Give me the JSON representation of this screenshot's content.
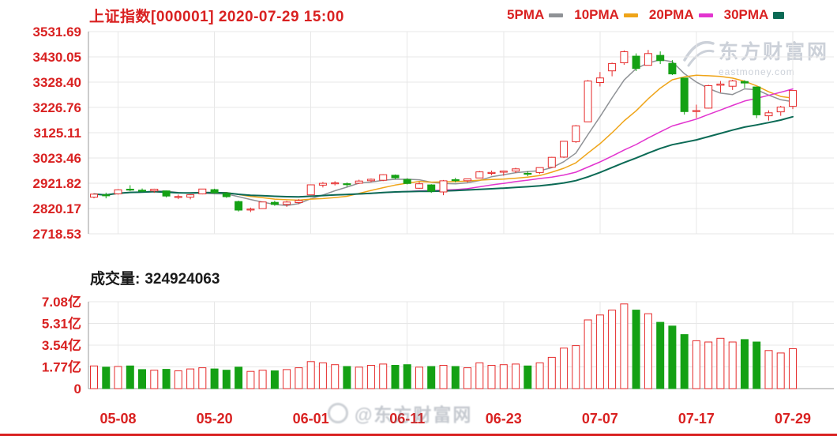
{
  "header": {
    "title": "上证指数[000001] 2020-07-29 15:00",
    "legend": [
      {
        "label": "5PMA",
        "color": "#8f9296"
      },
      {
        "label": "10PMA",
        "color": "#efa418"
      },
      {
        "label": "20PMA",
        "color": "#e234cf"
      },
      {
        "label": "30PMA",
        "color": "#0b6a55"
      }
    ]
  },
  "watermark": {
    "name": "东方财富网",
    "domain": "eastmoney.com",
    "center": "@东方财富网"
  },
  "volume_header": {
    "label": "成交量:",
    "value": "324924063"
  },
  "colors": {
    "up": "#e62b2b",
    "down": "#14a114",
    "text_red": "#d92121",
    "grid": "#e7e7e7",
    "axis": "#9a9a9a",
    "black_text": "#1a1a1a",
    "watermark": "#ccd1d9"
  },
  "chart_data": {
    "type": "candlestick",
    "title": "上证指数[000001]",
    "datetime": "2020-07-29 15:00",
    "price_axis": {
      "min": 2718.53,
      "max": 3531.69,
      "ticks": [
        3531.69,
        3430.05,
        3328.4,
        3226.76,
        3125.11,
        3023.46,
        2921.82,
        2820.17,
        2718.53
      ]
    },
    "volume_axis": {
      "unit": "亿",
      "ticks": [
        {
          "v": 7.08,
          "label": "7.08亿"
        },
        {
          "v": 5.31,
          "label": "5.31亿"
        },
        {
          "v": 3.54,
          "label": "3.54亿"
        },
        {
          "v": 1.77,
          "label": "1.77亿"
        },
        {
          "v": 0,
          "label": "0"
        }
      ]
    },
    "x_ticks": [
      "05-08",
      "05-20",
      "06-01",
      "06-11",
      "06-23",
      "07-07",
      "07-17",
      "07-29"
    ],
    "ma_windows": [
      5,
      10,
      20,
      30
    ],
    "columns": [
      "date",
      "open",
      "high",
      "low",
      "close",
      "volume_yi"
    ],
    "candles": [
      [
        "05-06",
        2866,
        2881,
        2861,
        2878.1,
        1.85
      ],
      [
        "05-07",
        2875,
        2884,
        2861,
        2871.5,
        1.75
      ],
      [
        "05-08",
        2879,
        2898,
        2876,
        2895.3,
        1.8
      ],
      [
        "05-11",
        2898,
        2914,
        2890,
        2894.8,
        1.85
      ],
      [
        "05-12",
        2894,
        2901,
        2886,
        2891.6,
        1.55
      ],
      [
        "05-13",
        2891,
        2900,
        2883,
        2898.1,
        1.5
      ],
      [
        "05-14",
        2891,
        2892,
        2865,
        2870.3,
        1.57
      ],
      [
        "05-15",
        2866,
        2876,
        2858,
        2868.5,
        1.45
      ],
      [
        "05-18",
        2866,
        2877,
        2857,
        2875.4,
        1.6
      ],
      [
        "05-19",
        2879,
        2899,
        2877,
        2898.6,
        1.7
      ],
      [
        "05-20",
        2896,
        2900,
        2880,
        2883.7,
        1.6
      ],
      [
        "05-21",
        2881,
        2886,
        2863,
        2867.9,
        1.5
      ],
      [
        "05-22",
        2848,
        2852,
        2808,
        2813.8,
        1.75
      ],
      [
        "05-25",
        2815,
        2824,
        2806,
        2818.0,
        1.4
      ],
      [
        "05-26",
        2820,
        2847,
        2820,
        2846.6,
        1.5
      ],
      [
        "05-27",
        2845,
        2852,
        2831,
        2836.8,
        1.45
      ],
      [
        "05-28",
        2837,
        2851,
        2827,
        2846.2,
        1.55
      ],
      [
        "05-29",
        2844,
        2858,
        2838,
        2852.4,
        1.7
      ],
      [
        "06-01",
        2875,
        2916,
        2874,
        2915.4,
        2.2
      ],
      [
        "06-02",
        2914,
        2927,
        2905,
        2921.4,
        2.1
      ],
      [
        "06-03",
        2922,
        2930,
        2913,
        2923.4,
        1.95
      ],
      [
        "06-04",
        2920,
        2925,
        2908,
        2919.3,
        1.8
      ],
      [
        "06-05",
        2922,
        2936,
        2919,
        2930.8,
        1.75
      ],
      [
        "06-08",
        2932,
        2941,
        2926,
        2937.8,
        1.9
      ],
      [
        "06-09",
        2934,
        2958,
        2930,
        2956.1,
        2.0
      ],
      [
        "06-10",
        2954,
        2957,
        2938,
        2943.8,
        1.9
      ],
      [
        "06-11",
        2937,
        2942,
        2917,
        2920.9,
        1.95
      ],
      [
        "06-12",
        2902,
        2927,
        2899,
        2919.7,
        1.75
      ],
      [
        "06-15",
        2915,
        2918,
        2883,
        2890.0,
        1.8
      ],
      [
        "06-16",
        2887,
        2935,
        2874,
        2931.8,
        1.9
      ],
      [
        "06-17",
        2936,
        2944,
        2925,
        2935.9,
        1.8
      ],
      [
        "06-18",
        2932,
        2941,
        2925,
        2939.3,
        1.7
      ],
      [
        "06-19",
        2943,
        2971,
        2942,
        2967.6,
        2.1
      ],
      [
        "06-22",
        2965,
        2973,
        2954,
        2965.3,
        1.9
      ],
      [
        "06-23",
        2966,
        2973,
        2952,
        2970.6,
        1.95
      ],
      [
        "06-24",
        2971,
        2984,
        2963,
        2979.6,
        2.0
      ],
      [
        "06-29",
        2962,
        2970,
        2950,
        2961.5,
        1.85
      ],
      [
        "06-30",
        2965,
        2985,
        2959,
        2984.7,
        2.1
      ],
      [
        "07-01",
        2986,
        3028,
        2984,
        3026.0,
        2.55
      ],
      [
        "07-02",
        3027,
        3091,
        3023,
        3090.6,
        3.3
      ],
      [
        "07-03",
        3089,
        3156,
        3084,
        3152.8,
        3.5
      ],
      [
        "07-06",
        3169,
        3337,
        3169,
        3332.9,
        5.6
      ],
      [
        "07-07",
        3327,
        3369,
        3311,
        3345.3,
        6.0
      ],
      [
        "07-08",
        3374,
        3407,
        3352,
        3403.4,
        6.4
      ],
      [
        "07-09",
        3406,
        3456,
        3398,
        3450.6,
        6.9
      ],
      [
        "07-10",
        3433,
        3444,
        3373,
        3383.3,
        6.4
      ],
      [
        "07-13",
        3396,
        3458,
        3396,
        3443.3,
        6.1
      ],
      [
        "07-14",
        3436,
        3452,
        3401,
        3414.6,
        5.4
      ],
      [
        "07-15",
        3404,
        3417,
        3357,
        3361.3,
        5.1
      ],
      [
        "07-16",
        3345,
        3346,
        3198,
        3210.1,
        4.4
      ],
      [
        "07-17",
        3211,
        3238,
        3184,
        3214.1,
        3.9
      ],
      [
        "07-20",
        3224,
        3318,
        3222,
        3314.2,
        3.8
      ],
      [
        "07-21",
        3316,
        3333,
        3287,
        3320.9,
        4.1
      ],
      [
        "07-22",
        3312,
        3338,
        3297,
        3333.2,
        3.8
      ],
      [
        "07-23",
        3331,
        3336,
        3305,
        3325.1,
        4.0
      ],
      [
        "07-24",
        3309,
        3309,
        3184,
        3196.8,
        3.8
      ],
      [
        "07-27",
        3193,
        3215,
        3174,
        3205.2,
        3.1
      ],
      [
        "07-28",
        3209,
        3233,
        3193,
        3228.0,
        2.9
      ],
      [
        "07-29",
        3231,
        3295,
        3220,
        3294.6,
        3.25
      ]
    ]
  }
}
